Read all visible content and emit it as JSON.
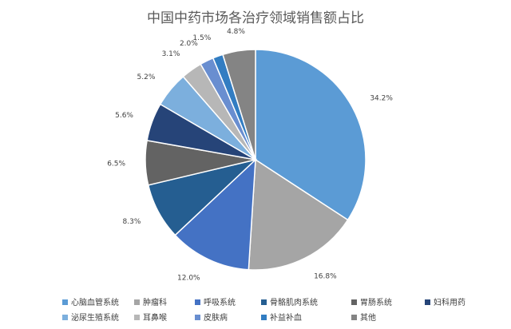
{
  "chart_data": {
    "type": "pie",
    "title": "中国中药市场各治疗领域销售额占比",
    "categories": [
      "心脑血管系统",
      "肿瘤科",
      "呼吸系统",
      "骨骼肌肉系统",
      "胃肠系统",
      "妇科用药",
      "泌尿生殖系统",
      "耳鼻喉",
      "皮肤病",
      "补益补血",
      "其他"
    ],
    "values": [
      34.2,
      16.8,
      12.0,
      8.3,
      6.5,
      5.6,
      5.2,
      3.1,
      2.0,
      1.5,
      4.8
    ],
    "labels": [
      "34.2%",
      "16.8%",
      "12.0%",
      "8.3%",
      "6.5%",
      "5.6%",
      "5.2%",
      "3.1%",
      "2.0%",
      "1.5%",
      "4.8%"
    ],
    "colors": [
      "#5b9bd5",
      "#a5a5a5",
      "#4472c4",
      "#255e91",
      "#636363",
      "#264478",
      "#7cafdd",
      "#b7b7b7",
      "#698ed0",
      "#327dc2",
      "#848484"
    ],
    "legend_position": "bottom"
  }
}
